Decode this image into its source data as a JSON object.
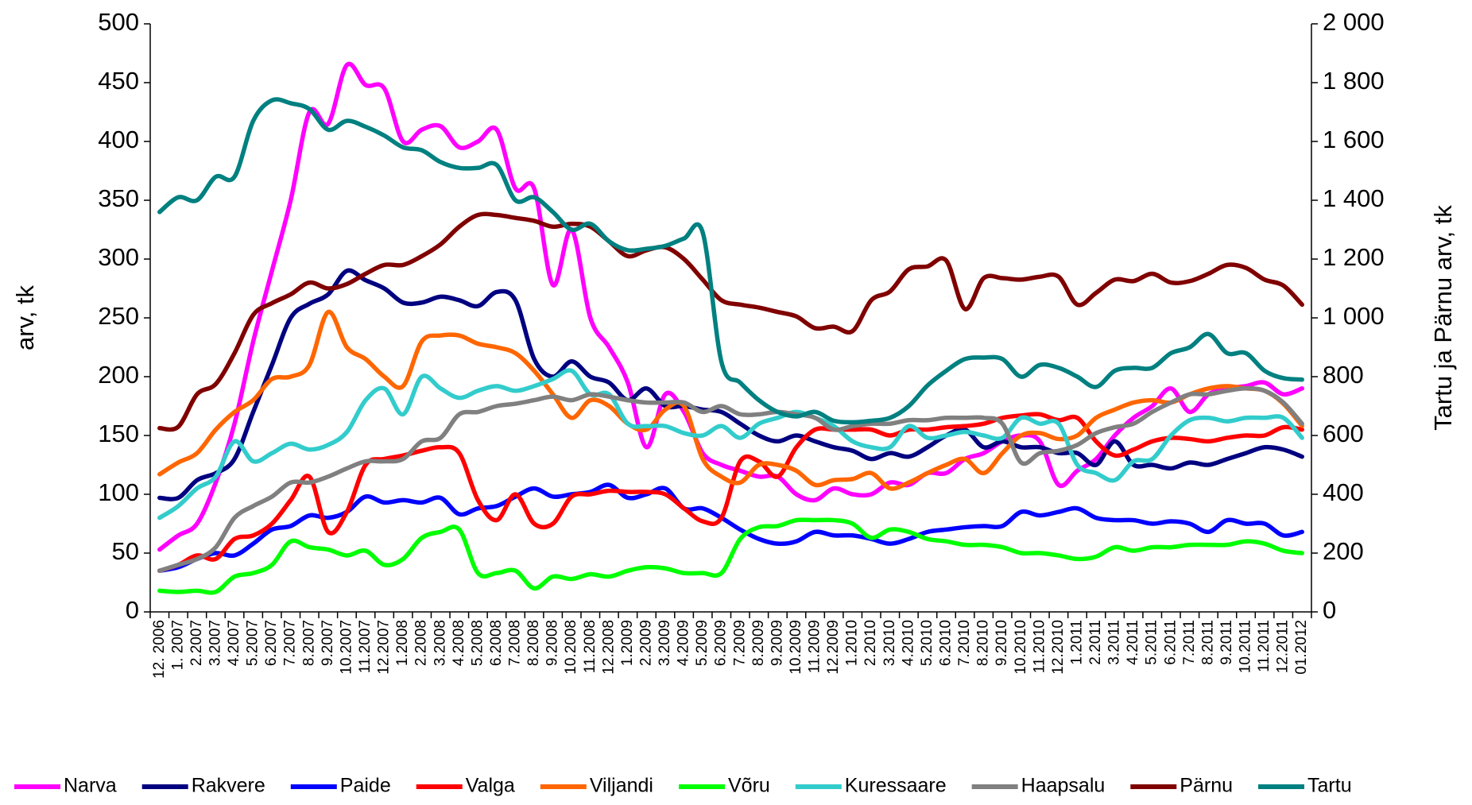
{
  "chart_data": {
    "type": "line",
    "y_label": "arv, tk",
    "y2_label": "Tartu ja Pärnu arv, tk",
    "categories": [
      "12. 2006",
      "1. 2007",
      "2.2007",
      "3.2007",
      "4.2007",
      "5.2007",
      "6.2007",
      "7.2007",
      "8.2007",
      "9.2007",
      "10.2007",
      "11.2007",
      "12.2007",
      "1.2008",
      "2.2008",
      "3.2008",
      "4.2008",
      "5.2008",
      "6.2008",
      "7.2008",
      "8.2008",
      "9.2008",
      "10.2008",
      "11.2008",
      "12.2008",
      "1.2009",
      "2.2009",
      "3.2009",
      "4.2009",
      "5.2009",
      "6.2009",
      "7.2009",
      "8.2009",
      "9.2009",
      "10.2009",
      "11.2009",
      "12.2009",
      "1.2010",
      "2.2010",
      "3.2010",
      "4.2010",
      "5.2010",
      "6.2010",
      "7.2010",
      "8.2010",
      "9.2010",
      "10.2010",
      "11.2010",
      "12.2010",
      "1.2011",
      "2.2011",
      "3.2011",
      "4.2011",
      "5.2011",
      "6.2011",
      "7.2011",
      "8.2011",
      "9.2011",
      "10.2011",
      "11.2011",
      "12.2011",
      "01.2012"
    ],
    "ylim": [
      0,
      500
    ],
    "yticks": [
      0,
      50,
      100,
      150,
      200,
      250,
      300,
      350,
      400,
      450,
      500
    ],
    "y2lim": [
      0,
      2000
    ],
    "y2ticks": [
      0,
      200,
      400,
      600,
      800,
      {
        "value": 1000,
        "label": "1 000"
      },
      {
        "value": 1200,
        "label": "1 200"
      },
      {
        "value": 1400,
        "label": "1 400"
      },
      {
        "value": 1600,
        "label": "1 600"
      },
      {
        "value": 1800,
        "label": "1 800"
      },
      {
        "value": 2000,
        "label": "2 000"
      }
    ],
    "legend": "bottom",
    "series": [
      {
        "name": "Narva",
        "color": "#ff00ff",
        "values": [
          53,
          65,
          75,
          110,
          160,
          230,
          290,
          350,
          425,
          415,
          465,
          448,
          445,
          400,
          410,
          413,
          395,
          400,
          410,
          360,
          360,
          278,
          325,
          250,
          225,
          195,
          140,
          185,
          170,
          135,
          125,
          120,
          115,
          115,
          100,
          95,
          105,
          100,
          100,
          110,
          108,
          118,
          118,
          130,
          135,
          145,
          150,
          145,
          108,
          120,
          130,
          150,
          165,
          175,
          190,
          170,
          185,
          190,
          192,
          195,
          185,
          190
        ]
      },
      {
        "name": "Rakvere",
        "color": "#000080",
        "values": [
          97,
          97,
          112,
          118,
          130,
          170,
          210,
          250,
          262,
          270,
          290,
          282,
          275,
          263,
          263,
          268,
          265,
          260,
          272,
          265,
          215,
          200,
          213,
          200,
          195,
          180,
          190,
          175,
          175,
          172,
          170,
          160,
          150,
          145,
          150,
          145,
          140,
          137,
          130,
          135,
          132,
          140,
          150,
          155,
          140,
          145,
          140,
          140,
          135,
          135,
          125,
          145,
          125,
          125,
          122,
          127,
          125,
          130,
          135,
          140,
          138,
          132
        ]
      },
      {
        "name": "Paide",
        "color": "#0000ff",
        "values": [
          35,
          38,
          45,
          50,
          48,
          58,
          70,
          73,
          82,
          80,
          85,
          98,
          93,
          95,
          93,
          97,
          83,
          88,
          90,
          98,
          105,
          98,
          100,
          102,
          108,
          97,
          100,
          105,
          88,
          88,
          80,
          70,
          62,
          58,
          60,
          68,
          65,
          65,
          62,
          58,
          62,
          68,
          70,
          72,
          73,
          73,
          85,
          82,
          85,
          88,
          80,
          78,
          78,
          75,
          77,
          75,
          68,
          78,
          75,
          75,
          65,
          68
        ]
      },
      {
        "name": "Valga",
        "color": "#ff0000",
        "values": [
          35,
          40,
          48,
          45,
          62,
          65,
          75,
          95,
          115,
          68,
          85,
          125,
          130,
          133,
          137,
          140,
          135,
          95,
          78,
          100,
          75,
          75,
          98,
          100,
          103,
          102,
          102,
          100,
          88,
          77,
          80,
          128,
          128,
          115,
          140,
          155,
          155,
          155,
          155,
          150,
          155,
          155,
          157,
          158,
          160,
          165,
          167,
          168,
          163,
          165,
          145,
          133,
          138,
          145,
          148,
          147,
          145,
          148,
          150,
          150,
          157,
          155
        ]
      },
      {
        "name": "Viljandi",
        "color": "#ff6600",
        "values": [
          117,
          127,
          135,
          155,
          170,
          180,
          198,
          200,
          210,
          255,
          225,
          215,
          200,
          192,
          230,
          235,
          235,
          228,
          225,
          220,
          205,
          185,
          165,
          180,
          175,
          160,
          155,
          172,
          175,
          130,
          115,
          110,
          125,
          125,
          120,
          108,
          112,
          113,
          118,
          105,
          110,
          118,
          125,
          130,
          118,
          135,
          150,
          152,
          147,
          150,
          165,
          172,
          178,
          180,
          178,
          185,
          190,
          192,
          190,
          188,
          177,
          158
        ]
      },
      {
        "name": "Võru",
        "color": "#00ff00",
        "values": [
          18,
          17,
          18,
          17,
          30,
          33,
          40,
          60,
          55,
          53,
          48,
          52,
          40,
          45,
          63,
          68,
          70,
          33,
          33,
          35,
          20,
          30,
          28,
          32,
          30,
          35,
          38,
          37,
          33,
          33,
          33,
          62,
          72,
          73,
          78,
          78,
          78,
          75,
          63,
          70,
          68,
          62,
          60,
          57,
          57,
          55,
          50,
          50,
          48,
          45,
          47,
          55,
          52,
          55,
          55,
          57,
          57,
          57,
          60,
          58,
          52,
          50
        ]
      },
      {
        "name": "Kuressaare",
        "color": "#33cccc",
        "values": [
          80,
          90,
          105,
          115,
          145,
          128,
          135,
          143,
          138,
          142,
          153,
          180,
          190,
          168,
          200,
          190,
          182,
          188,
          192,
          188,
          192,
          198,
          205,
          185,
          185,
          160,
          158,
          158,
          152,
          150,
          158,
          148,
          160,
          165,
          170,
          165,
          158,
          145,
          140,
          140,
          158,
          148,
          150,
          153,
          150,
          148,
          165,
          160,
          160,
          125,
          118,
          112,
          128,
          130,
          150,
          163,
          165,
          162,
          165,
          165,
          165,
          148
        ]
      },
      {
        "name": "Haapsalu",
        "color": "#808080",
        "values": [
          35,
          40,
          45,
          55,
          80,
          90,
          98,
          110,
          110,
          115,
          122,
          128,
          128,
          130,
          145,
          148,
          168,
          170,
          175,
          177,
          180,
          183,
          180,
          185,
          183,
          180,
          178,
          178,
          178,
          170,
          175,
          168,
          168,
          170,
          168,
          165,
          155,
          158,
          160,
          160,
          163,
          163,
          165,
          165,
          165,
          160,
          127,
          135,
          137,
          142,
          152,
          157,
          160,
          170,
          178,
          185,
          185,
          188,
          190,
          188,
          178,
          160
        ]
      },
      {
        "name": "Pärnu",
        "color": "#800000",
        "axis": "y2",
        "values": [
          625,
          630,
          740,
          775,
          880,
          1010,
          1050,
          1080,
          1120,
          1100,
          1115,
          1150,
          1180,
          1180,
          1210,
          1250,
          1310,
          1350,
          1350,
          1340,
          1330,
          1310,
          1320,
          1310,
          1260,
          1210,
          1230,
          1240,
          1200,
          1130,
          1060,
          1045,
          1035,
          1020,
          1005,
          965,
          970,
          955,
          1060,
          1090,
          1165,
          1175,
          1195,
          1030,
          1135,
          1135,
          1130,
          1140,
          1140,
          1045,
          1085,
          1130,
          1125,
          1150,
          1120,
          1125,
          1150,
          1180,
          1170,
          1130,
          1110,
          1045
        ]
      },
      {
        "name": "Tartu",
        "color": "#008080",
        "axis": "y2",
        "values": [
          1360,
          1410,
          1400,
          1480,
          1480,
          1670,
          1740,
          1730,
          1710,
          1640,
          1670,
          1650,
          1620,
          1580,
          1570,
          1530,
          1510,
          1510,
          1520,
          1400,
          1410,
          1360,
          1300,
          1320,
          1260,
          1230,
          1235,
          1245,
          1270,
          1290,
          850,
          780,
          720,
          680,
          665,
          680,
          650,
          645,
          650,
          660,
          700,
          770,
          820,
          860,
          865,
          860,
          800,
          840,
          830,
          800,
          765,
          820,
          830,
          830,
          880,
          900,
          945,
          880,
          880,
          820,
          795,
          790
        ]
      }
    ]
  }
}
